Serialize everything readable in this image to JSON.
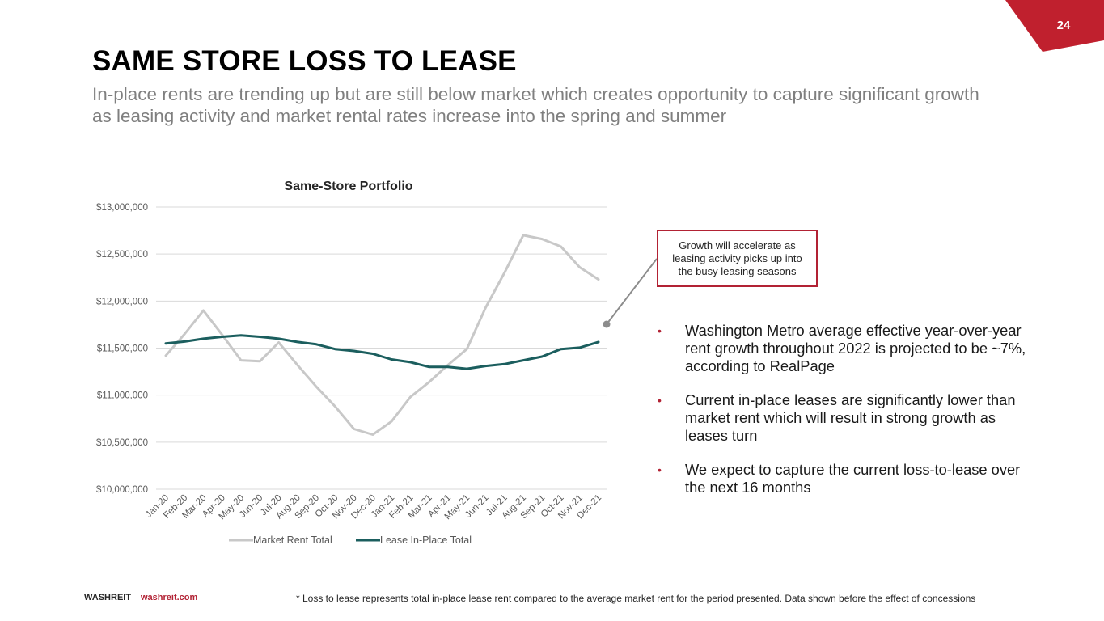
{
  "page": {
    "number": "24",
    "title": "SAME STORE LOSS TO LEASE",
    "subtitle": "In-place rents are trending up but are still below market which creates opportunity to capture significant growth as leasing activity and market rental rates increase into the spring and summer"
  },
  "colors": {
    "brand_red": "#b22234",
    "market_rent": "#c8c8c8",
    "lease_in_place": "#1b5e5e",
    "gridline": "#d9d9d9",
    "axis_text": "#595959"
  },
  "callout": {
    "text": "Growth will accelerate as leasing activity picks up into the busy leasing seasons"
  },
  "bullets": [
    "Washington Metro average effective year-over-year rent growth throughout 2022 is projected to be ~7%, according to RealPage",
    "Current in-place leases are significantly lower than market rent which will result in strong growth as leases turn",
    "We expect to capture the current loss-to-lease over the next 16 months"
  ],
  "footer": {
    "brand": "WASHREIT",
    "link": "washreit.com",
    "footnote": "* Loss to lease represents total in-place lease rent compared to the average market rent for the period presented. Data shown before the effect of concessions"
  },
  "chart_data": {
    "type": "line",
    "title": "Same-Store Portfolio",
    "xlabel": "",
    "ylabel": "",
    "ylim": [
      10000000,
      13000000
    ],
    "yticks": [
      10000000,
      10500000,
      11000000,
      11500000,
      12000000,
      12500000,
      13000000
    ],
    "ytick_labels": [
      "$10,000,000",
      "$10,500,000",
      "$11,000,000",
      "$11,500,000",
      "$12,000,000",
      "$12,500,000",
      "$13,000,000"
    ],
    "grid": true,
    "legend": "bottom",
    "categories": [
      "Jan-20",
      "Feb-20",
      "Mar-20",
      "Apr-20",
      "May-20",
      "Jun-20",
      "Jul-20",
      "Aug-20",
      "Sep-20",
      "Oct-20",
      "Nov-20",
      "Dec-20",
      "Jan-21",
      "Feb-21",
      "Mar-21",
      "Apr-21",
      "May-21",
      "Jun-21",
      "Jul-21",
      "Aug-21",
      "Sep-21",
      "Oct-21",
      "Nov-21",
      "Dec-21"
    ],
    "series": [
      {
        "name": "Market Rent Total",
        "color": "#c8c8c8",
        "values": [
          11420000,
          11650000,
          11900000,
          11640000,
          11370000,
          11360000,
          11560000,
          11320000,
          11090000,
          10880000,
          10640000,
          10580000,
          10720000,
          10980000,
          11140000,
          11320000,
          11490000,
          11930000,
          12300000,
          12700000,
          12660000,
          12580000,
          12360000,
          12230000
        ]
      },
      {
        "name": "Lease In-Place Total",
        "color": "#1b5e5e",
        "values": [
          11550000,
          11570000,
          11600000,
          11620000,
          11635000,
          11620000,
          11600000,
          11565000,
          11540000,
          11490000,
          11470000,
          11440000,
          11380000,
          11350000,
          11300000,
          11300000,
          11280000,
          11310000,
          11330000,
          11370000,
          11410000,
          11490000,
          11505000,
          11565000
        ]
      }
    ]
  }
}
